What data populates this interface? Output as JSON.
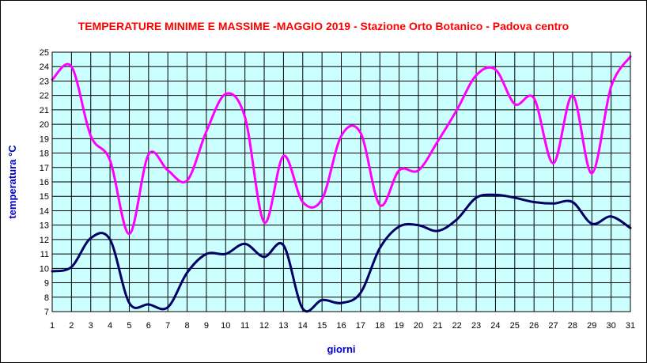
{
  "chart_data": {
    "type": "line",
    "title": "TEMPERATURE MINIME E MASSIME  -MAGGIO 2019 - Stazione Orto Botanico - Padova centro",
    "xlabel": "giorni",
    "ylabel": "temperatura °C",
    "ylim": [
      7,
      25
    ],
    "xlim": [
      1,
      31
    ],
    "grid": true,
    "legend": "none",
    "plot_background": "#ccffff",
    "x": [
      1,
      2,
      3,
      4,
      5,
      6,
      7,
      8,
      9,
      10,
      11,
      12,
      13,
      14,
      15,
      16,
      17,
      18,
      19,
      20,
      21,
      22,
      23,
      24,
      25,
      26,
      27,
      28,
      29,
      30,
      31
    ],
    "series": [
      {
        "color": "#ff00ff",
        "values": [
          23.1,
          24.0,
          19.2,
          17.5,
          12.4,
          17.9,
          16.8,
          16.1,
          19.5,
          22.1,
          20.5,
          13.2,
          17.8,
          14.6,
          14.8,
          19.2,
          19.4,
          14.4,
          16.8,
          16.8,
          18.8,
          21.0,
          23.4,
          23.8,
          21.4,
          21.8,
          17.3,
          22.0,
          16.6,
          22.6,
          24.7
        ]
      },
      {
        "color": "#000066",
        "values": [
          9.8,
          10.1,
          12.1,
          12.0,
          7.6,
          7.5,
          7.3,
          9.7,
          11.0,
          11.0,
          11.7,
          10.8,
          11.6,
          7.2,
          7.8,
          7.6,
          8.3,
          11.4,
          12.9,
          13.0,
          12.6,
          13.4,
          14.9,
          15.1,
          14.9,
          14.6,
          14.5,
          14.6,
          13.1,
          13.6,
          12.8
        ]
      }
    ]
  }
}
